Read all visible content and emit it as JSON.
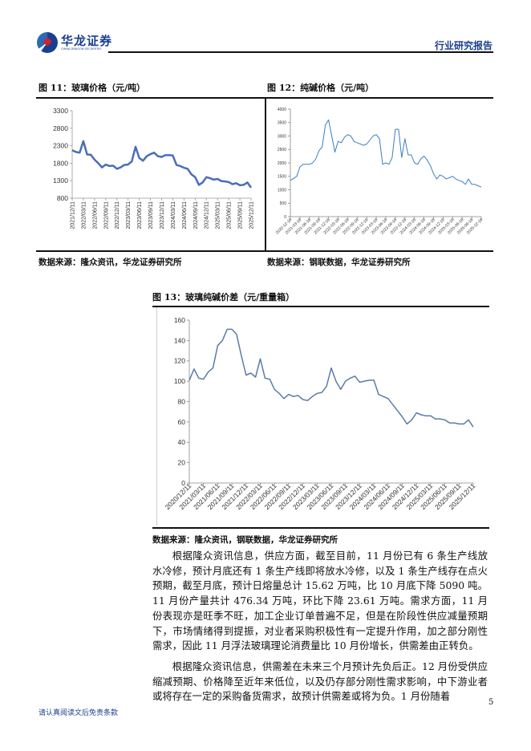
{
  "header": {
    "logo_cn": "华龙证券",
    "logo_en": "CHINA DRAGON SECURITIES",
    "report_type": "行业研究报告"
  },
  "figures": {
    "fig11": {
      "title": "图 11：玻璃价格（元/吨）",
      "source": "数据来源：隆众资讯，华龙证券研究所"
    },
    "fig12": {
      "title": "图 12：纯碱价格（元/吨）",
      "source": "数据来源：钢联数据，华龙证券研究所"
    },
    "fig13": {
      "title": "图 13：玻璃纯碱价差（元/重量箱）",
      "source": "数据来源：隆众资讯，钢联数据，华龙证券研究所"
    }
  },
  "chart_data": [
    {
      "type": "line",
      "color": "#4a6eb5",
      "ylim": [
        800,
        3300
      ],
      "yticks": [
        800,
        1300,
        1800,
        2300,
        2800,
        3300
      ],
      "xticks": [
        "2021/12/11",
        "2022/03/11",
        "2022/06/11",
        "2022/09/11",
        "2022/12/11",
        "2023/03/11",
        "2023/06/11",
        "2023/09/11",
        "2023/12/11",
        "2024/03/11",
        "2024/06/11",
        "2024/09/11",
        "2024/12/11",
        "2025/03/11",
        "2025/06/11",
        "2025/09/11",
        "2025/12/11"
      ],
      "x": [
        "2021-12",
        "2022-01",
        "2022-02",
        "2022-03",
        "2022-04",
        "2022-05",
        "2022-06",
        "2022-07",
        "2022-08",
        "2022-09",
        "2022-10",
        "2022-11",
        "2022-12",
        "2023-01",
        "2023-02",
        "2023-03",
        "2023-04",
        "2023-05",
        "2023-06",
        "2023-07",
        "2023-08",
        "2023-09",
        "2023-10",
        "2023-11",
        "2023-12",
        "2024-01",
        "2024-02",
        "2024-03",
        "2024-04",
        "2024-05",
        "2024-06",
        "2024-07",
        "2024-08",
        "2024-09",
        "2024-10",
        "2024-11",
        "2024-12",
        "2025-01",
        "2025-02",
        "2025-03",
        "2025-04",
        "2025-05",
        "2025-06",
        "2025-07",
        "2025-08",
        "2025-09",
        "2025-10",
        "2025-11",
        "2025-12"
      ],
      "values": [
        2170,
        2120,
        2100,
        2430,
        2050,
        2040,
        1900,
        1800,
        1680,
        1760,
        1720,
        1730,
        1640,
        1680,
        1750,
        1760,
        1850,
        2270,
        1950,
        1870,
        2000,
        2060,
        2100,
        2000,
        1980,
        2030,
        2030,
        2020,
        1750,
        1720,
        1670,
        1640,
        1480,
        1400,
        1180,
        1250,
        1400,
        1370,
        1330,
        1350,
        1290,
        1280,
        1260,
        1200,
        1230,
        1170,
        1180,
        1250,
        1100
      ]
    },
    {
      "type": "line",
      "color": "#3b7fbf",
      "ylim": [
        0,
        4000
      ],
      "yticks": [
        0,
        500,
        1000,
        1500,
        2000,
        2500,
        3000,
        3500,
        4000
      ],
      "xticks": [
        "2020-12-16",
        "2021-03-16",
        "2021-06-16",
        "2021-09-16",
        "2021-12-16",
        "2022-03-16",
        "2022-06-16",
        "2022-09-16",
        "2022-12-16",
        "2023-03-16",
        "2023-06-16",
        "2023-09-16",
        "2023-12-16",
        "2024-03-16",
        "2024-06-16",
        "2024-09-16",
        "2024-12-16",
        "2025-03-16",
        "2025-06-16",
        "2025-09-16",
        "2025-12-16"
      ],
      "x": [
        "2020-12",
        "2021-01",
        "2021-02",
        "2021-03",
        "2021-04",
        "2021-05",
        "2021-06",
        "2021-07",
        "2021-08",
        "2021-09",
        "2021-10",
        "2021-11",
        "2021-12",
        "2022-01",
        "2022-02",
        "2022-03",
        "2022-04",
        "2022-05",
        "2022-06",
        "2022-07",
        "2022-08",
        "2022-09",
        "2022-10",
        "2022-11",
        "2022-12",
        "2023-01",
        "2023-02",
        "2023-03",
        "2023-04",
        "2023-05",
        "2023-06",
        "2023-07",
        "2023-08",
        "2023-09",
        "2023-10",
        "2023-11",
        "2023-12",
        "2024-01",
        "2024-02",
        "2024-03",
        "2024-04",
        "2024-05",
        "2024-06",
        "2024-07",
        "2024-08",
        "2024-09",
        "2024-10",
        "2024-11",
        "2024-12",
        "2025-01",
        "2025-02",
        "2025-03",
        "2025-04",
        "2025-05",
        "2025-06",
        "2025-07",
        "2025-08",
        "2025-09",
        "2025-10",
        "2025-11",
        "2025-12"
      ],
      "values": [
        1350,
        1420,
        1500,
        1850,
        1950,
        1950,
        1950,
        2000,
        2150,
        2450,
        2600,
        3400,
        3600,
        3000,
        2400,
        2800,
        2750,
        2950,
        3050,
        3000,
        2800,
        2750,
        2700,
        2650,
        2700,
        2850,
        3000,
        3050,
        2900,
        1950,
        2000,
        1950,
        2200,
        3250,
        3250,
        2200,
        2900,
        2300,
        2300,
        2000,
        1950,
        2150,
        2250,
        2100,
        1900,
        1600,
        1400,
        1550,
        1500,
        1400,
        1450,
        1500,
        1400,
        1350,
        1300,
        1200,
        1400,
        1200,
        1200,
        1150,
        1100
      ]
    },
    {
      "type": "line",
      "color": "#5a7ca8",
      "ylim": [
        0,
        160
      ],
      "yticks": [
        0,
        20,
        40,
        60,
        80,
        100,
        120,
        140,
        160
      ],
      "xticks": [
        "2020/12/11",
        "2021/03/11",
        "2021/06/11",
        "2021/09/11",
        "2021/12/11",
        "2022/03/11",
        "2022/06/11",
        "2022/09/11",
        "2022/12/11",
        "2023/03/11",
        "2023/06/11",
        "2023/09/11",
        "2023/12/11",
        "2024/03/11",
        "2024/06/11",
        "2024/09/11",
        "2024/12/11",
        "2025/03/11",
        "2025/06/11",
        "2025/09/11",
        "2025/12/11"
      ],
      "x": [
        "2020-12",
        "2021-01",
        "2021-02",
        "2021-03",
        "2021-04",
        "2021-05",
        "2021-06",
        "2021-07",
        "2021-08",
        "2021-09",
        "2021-10",
        "2021-11",
        "2021-12",
        "2022-01",
        "2022-02",
        "2022-03",
        "2022-04",
        "2022-05",
        "2022-06",
        "2022-07",
        "2022-08",
        "2022-09",
        "2022-10",
        "2022-11",
        "2022-12",
        "2023-01",
        "2023-02",
        "2023-03",
        "2023-04",
        "2023-05",
        "2023-06",
        "2023-07",
        "2023-08",
        "2023-09",
        "2023-10",
        "2023-11",
        "2023-12",
        "2024-01",
        "2024-02",
        "2024-03",
        "2024-04",
        "2024-05",
        "2024-06",
        "2024-07",
        "2024-08",
        "2024-09",
        "2024-10",
        "2024-11",
        "2024-12",
        "2025-01",
        "2025-02",
        "2025-03",
        "2025-04",
        "2025-05",
        "2025-06",
        "2025-07",
        "2025-08",
        "2025-09",
        "2025-10",
        "2025-11",
        "2025-12"
      ],
      "values": [
        101,
        112,
        103,
        102,
        109,
        113,
        135,
        140,
        151,
        151,
        146,
        125,
        106,
        108,
        104,
        122,
        103,
        102,
        92,
        88,
        83,
        87,
        85,
        86,
        82,
        81,
        85,
        88,
        89,
        95,
        113,
        100,
        92,
        100,
        103,
        105,
        99,
        100,
        101,
        101,
        87,
        85,
        83,
        77,
        71,
        65,
        58,
        62,
        69,
        67,
        66,
        66,
        63,
        63,
        62,
        59,
        59,
        58,
        58,
        62,
        55
      ]
    }
  ],
  "body": {
    "p1": "根据隆众资讯信息，供应方面，截至目前，11 月份已有 6 条生产线放水冷修，预计月底还有 1 条生产线即将放水冷修，以及 1 条生产线存在点火预期，截至月底，预计日熔量总计 15.62 万吨，比 10 月底下降 5090 吨。11 月份产量共计 476.34 万吨，环比下降 23.61 万吨。需求方面，11 月份表现亦是旺季不旺，加工企业订单普遍不足，但是在阶段性供应减量预期下，市场情绪得到提振，对业者采购积极性有一定提升作用，加之部分刚性需求，因此 11 月浮法玻璃理论消费量比 10 月份增长，供需差由正转负。",
    "p2": "根据隆众资讯信息，供需差在未来三个月预计先负后正。12 月份受供应缩减预期、价格降至近年来低位，以及仍存部分刚性需求影响，中下游业者或将存在一定的采购备货需求，故预计供需差或将为负。1 月份随着"
  },
  "footer": {
    "page_number": "5",
    "disclaimer": "请认真阅读文后免责条款"
  }
}
